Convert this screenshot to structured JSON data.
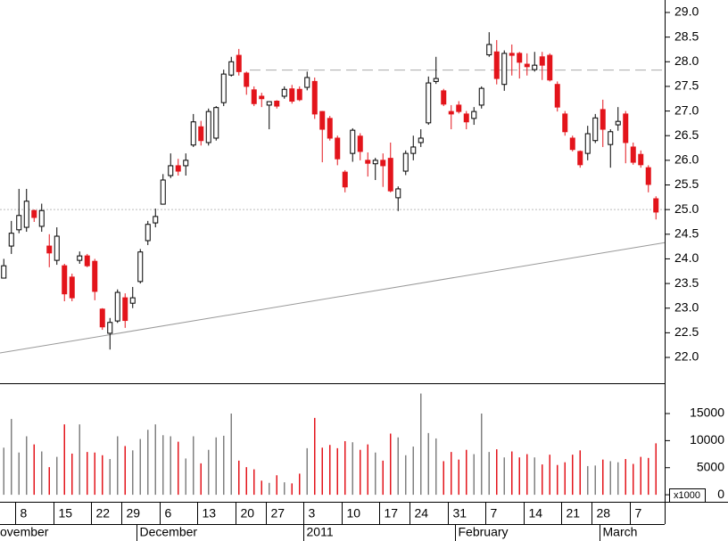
{
  "chart_data": {
    "type": "candlestick",
    "categories": [
      null,
      null,
      "8",
      null,
      null,
      null,
      null,
      "15",
      null,
      null,
      null,
      null,
      "22",
      null,
      null,
      null,
      "29",
      null,
      null,
      null,
      null,
      "6",
      null,
      null,
      null,
      null,
      "13",
      null,
      null,
      null,
      null,
      "20",
      null,
      null,
      null,
      "27",
      null,
      null,
      null,
      null,
      "3",
      null,
      null,
      null,
      null,
      "10",
      null,
      null,
      null,
      null,
      "17",
      null,
      null,
      null,
      "24",
      null,
      null,
      null,
      null,
      "31",
      null,
      null,
      null,
      null,
      "7",
      null,
      null,
      null,
      null,
      "14",
      null,
      null,
      null,
      null,
      "21",
      null,
      null,
      null,
      "28",
      null,
      null,
      null,
      null,
      "7",
      null,
      null,
      null
    ],
    "months": [
      "ovember",
      null,
      null,
      null,
      null,
      null,
      null,
      null,
      null,
      null,
      null,
      null,
      null,
      null,
      null,
      null,
      null,
      null,
      "December",
      null,
      null,
      null,
      null,
      null,
      null,
      null,
      null,
      null,
      null,
      null,
      null,
      null,
      null,
      null,
      null,
      null,
      null,
      null,
      null,
      null,
      "2011",
      null,
      null,
      null,
      null,
      null,
      null,
      null,
      null,
      null,
      null,
      null,
      null,
      null,
      null,
      null,
      null,
      null,
      null,
      null,
      "February",
      null,
      null,
      null,
      null,
      null,
      null,
      null,
      null,
      null,
      null,
      null,
      null,
      null,
      null,
      null,
      null,
      null,
      null,
      "March",
      null,
      null,
      null,
      null,
      null,
      null,
      null
    ],
    "open": [
      23.61,
      24.26,
      24.59,
      24.64,
      24.98,
      24.66,
      24.26,
      23.97,
      23.86,
      23.63,
      23.97,
      24.06,
      23.95,
      22.98,
      22.49,
      22.74,
      23.21,
      23.1,
      23.54,
      24.37,
      24.73,
      25.11,
      25.69,
      25.89,
      25.89,
      26.31,
      26.68,
      26.36,
      26.45,
      27.17,
      27.73,
      28.13,
      27.77,
      27.43,
      27.3,
      27.12,
      27.2,
      27.3,
      27.45,
      27.44,
      27.48,
      27.6,
      26.99,
      26.85,
      26.45,
      25.76,
      26.14,
      26.49,
      26.0,
      25.93,
      26.0,
      26.04,
      25.24,
      25.78,
      26.14,
      26.36,
      26.76,
      27.6,
      27.41,
      26.99,
      27.12,
      26.94,
      26.85,
      27.12,
      28.14,
      28.2,
      27.54,
      28.17,
      28.17,
      27.95,
      27.84,
      28.1,
      28.13,
      27.54,
      26.94,
      26.45,
      26.18,
      26.14,
      26.4,
      27.03,
      26.32,
      26.72,
      26.94,
      26.27,
      26.12,
      25.85,
      25.22
    ],
    "high": [
      24.0,
      24.77,
      25.42,
      25.42,
      25.0,
      25.12,
      24.5,
      24.64,
      23.9,
      23.7,
      24.15,
      24.1,
      24.0,
      23.0,
      22.8,
      23.38,
      23.3,
      23.43,
      24.2,
      24.77,
      25.02,
      25.72,
      26.14,
      26.03,
      26.14,
      26.94,
      26.8,
      27.05,
      27.1,
      27.84,
      28.1,
      28.26,
      27.8,
      27.5,
      27.37,
      27.2,
      27.22,
      27.5,
      27.53,
      27.5,
      27.8,
      27.68,
      27.0,
      26.9,
      26.5,
      25.8,
      26.65,
      26.55,
      26.16,
      26.05,
      26.14,
      26.36,
      25.47,
      26.2,
      26.5,
      26.63,
      27.7,
      28.1,
      27.45,
      27.12,
      27.2,
      27.0,
      27.08,
      27.5,
      28.6,
      28.44,
      28.23,
      28.35,
      28.2,
      28.17,
      28.2,
      28.2,
      28.17,
      27.6,
      27.0,
      26.5,
      26.2,
      26.7,
      26.94,
      27.23,
      26.63,
      27.08,
      27.0,
      26.36,
      26.2,
      25.9,
      25.27
    ],
    "low": [
      23.6,
      24.1,
      24.52,
      24.55,
      24.75,
      24.55,
      23.83,
      23.88,
      23.14,
      23.14,
      23.9,
      23.83,
      23.16,
      22.56,
      22.16,
      22.7,
      22.6,
      23.0,
      23.5,
      24.28,
      24.64,
      25.1,
      25.64,
      25.69,
      25.69,
      26.27,
      26.3,
      26.3,
      26.4,
      27.1,
      27.7,
      27.72,
      27.33,
      27.1,
      27.08,
      26.63,
      27.05,
      27.25,
      27.15,
      27.2,
      27.42,
      26.84,
      25.96,
      26.4,
      25.9,
      25.35,
      25.97,
      26.0,
      25.67,
      25.6,
      25.46,
      25.35,
      24.97,
      25.7,
      26.0,
      26.27,
      26.72,
      27.55,
      27.1,
      26.63,
      26.95,
      26.63,
      26.72,
      27.05,
      28.1,
      27.54,
      27.41,
      27.72,
      27.66,
      27.72,
      27.8,
      27.63,
      27.6,
      26.99,
      26.5,
      26.18,
      25.85,
      26.0,
      26.35,
      26.27,
      25.85,
      26.6,
      25.94,
      25.91,
      25.85,
      25.35,
      24.8
    ],
    "close": [
      23.86,
      24.52,
      24.88,
      25.17,
      24.84,
      24.98,
      24.12,
      24.46,
      23.29,
      23.21,
      24.06,
      23.86,
      23.34,
      22.62,
      22.71,
      23.32,
      22.75,
      23.21,
      24.14,
      24.7,
      24.86,
      25.6,
      25.89,
      25.78,
      26.0,
      26.78,
      26.4,
      26.99,
      27.07,
      27.75,
      28.0,
      27.8,
      27.5,
      27.15,
      27.25,
      27.19,
      27.1,
      27.44,
      27.2,
      27.23,
      27.68,
      26.94,
      26.63,
      26.45,
      26.03,
      25.46,
      26.61,
      26.18,
      25.94,
      26.0,
      25.89,
      25.38,
      25.42,
      26.14,
      26.27,
      26.45,
      27.57,
      27.66,
      27.14,
      26.94,
      26.99,
      26.78,
      26.99,
      27.46,
      28.35,
      27.66,
      28.17,
      28.13,
      27.99,
      27.9,
      27.93,
      27.93,
      27.63,
      27.08,
      26.58,
      26.22,
      25.91,
      26.54,
      26.86,
      26.63,
      26.58,
      26.79,
      26.36,
      25.96,
      25.91,
      25.51,
      24.95
    ],
    "volume": [
      8700,
      14000,
      7800,
      10800,
      9300,
      8000,
      5100,
      7000,
      13000,
      7600,
      13000,
      7900,
      7800,
      7300,
      6600,
      10800,
      9000,
      8200,
      10300,
      12000,
      13000,
      11000,
      10800,
      9800,
      6700,
      10800,
      5800,
      8300,
      10600,
      10900,
      15000,
      6300,
      5100,
      4700,
      2600,
      2200,
      3600,
      2300,
      2100,
      3900,
      8600,
      14200,
      8700,
      9200,
      8600,
      9900,
      9700,
      8300,
      9300,
      7800,
      6300,
      11300,
      10600,
      7300,
      8900,
      18700,
      11400,
      10400,
      6200,
      7900,
      6500,
      8300,
      7500,
      15000,
      7900,
      8400,
      6900,
      8000,
      6900,
      7500,
      6900,
      5600,
      7400,
      5500,
      6000,
      7400,
      8200,
      5300,
      5400,
      6500,
      6200,
      6000,
      6600,
      5700,
      7000,
      6800,
      9500
    ],
    "up_color": "#ffffff",
    "down_color": "#e3141b",
    "up_volume_color": "#808080",
    "down_volume_color": "#e3141b",
    "ylim": [
      21.476,
      29.253
    ],
    "yticks": [
      {
        "value": 22,
        "label": "22.0"
      },
      {
        "value": 22.5,
        "label": "22.5"
      },
      {
        "value": 23,
        "label": "23.0"
      },
      {
        "value": 23.5,
        "label": "23.5"
      },
      {
        "value": 24,
        "label": "24.0"
      },
      {
        "value": 24.5,
        "label": "24.5"
      },
      {
        "value": 25,
        "label": "25.0"
      },
      {
        "value": 25.5,
        "label": "25.5"
      },
      {
        "value": 26,
        "label": "26.0"
      },
      {
        "value": 26.5,
        "label": "26.5"
      },
      {
        "value": 27,
        "label": "27.0"
      },
      {
        "value": 27.5,
        "label": "27.5"
      },
      {
        "value": 28,
        "label": "28.0"
      },
      {
        "value": 28.5,
        "label": "28.5"
      },
      {
        "value": 29,
        "label": "29.0"
      }
    ],
    "y2lim": [
      -1300,
      20600
    ],
    "y2ticks": [
      0,
      5000,
      10000,
      15000
    ],
    "volume_unit": "x1000",
    "trendline": [
      22.09,
      24.33
    ],
    "resistance": 27.83,
    "reference": 25.0
  }
}
